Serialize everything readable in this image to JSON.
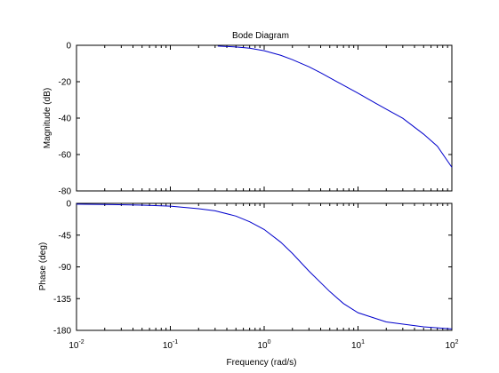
{
  "chart_data": {
    "type": "line",
    "title": "Bode Diagram",
    "xlabel": "Frequency  (rad/s)",
    "xscale": "log",
    "xlim": [
      0.01,
      100
    ],
    "x_ticks": [
      {
        "base": "10",
        "exp": "-2"
      },
      {
        "base": "10",
        "exp": "-1"
      },
      {
        "base": "10",
        "exp": "0"
      },
      {
        "base": "10",
        "exp": "1"
      },
      {
        "base": "10",
        "exp": "2"
      }
    ],
    "grid": false,
    "panels": [
      {
        "ylabel": "Magnitude (dB)",
        "ylim": [
          -80,
          0
        ],
        "yticks": [
          0,
          -20,
          -40,
          -60,
          -80
        ],
        "series": [
          {
            "color": "#0000cc",
            "x": [
              0.32,
              0.5,
              0.7,
              1.0,
              1.5,
              2.0,
              3.0,
              4.0,
              6.0,
              10.0,
              15.0,
              20.0,
              30.0,
              50.0,
              70.0,
              100.0
            ],
            "y": [
              -0.4,
              -0.9,
              -1.6,
              -3.0,
              -5.5,
              -7.9,
              -11.8,
              -15.1,
              -20.1,
              -26.3,
              -31.5,
              -35.1,
              -40.1,
              -48.8,
              -55.4,
              -67.0
            ]
          }
        ]
      },
      {
        "ylabel": "Phase (deg)",
        "ylim": [
          -180,
          0
        ],
        "yticks": [
          0,
          -45,
          -90,
          -135,
          -180
        ],
        "series": [
          {
            "color": "#0000cc",
            "x": [
              0.01,
              0.02,
              0.05,
              0.1,
              0.2,
              0.3,
              0.5,
              0.7,
              1.0,
              1.5,
              2.0,
              3.0,
              5.0,
              7.0,
              10.0,
              20.0,
              50.0,
              100.0
            ],
            "y": [
              -1.1,
              -1.5,
              -2.5,
              -4.0,
              -7.5,
              -10.5,
              -18.0,
              -26.0,
              -37.0,
              -55.0,
              -71.0,
              -96.0,
              -125.0,
              -142.0,
              -155.0,
              -168.0,
              -175.0,
              -178.0
            ]
          }
        ]
      }
    ]
  }
}
